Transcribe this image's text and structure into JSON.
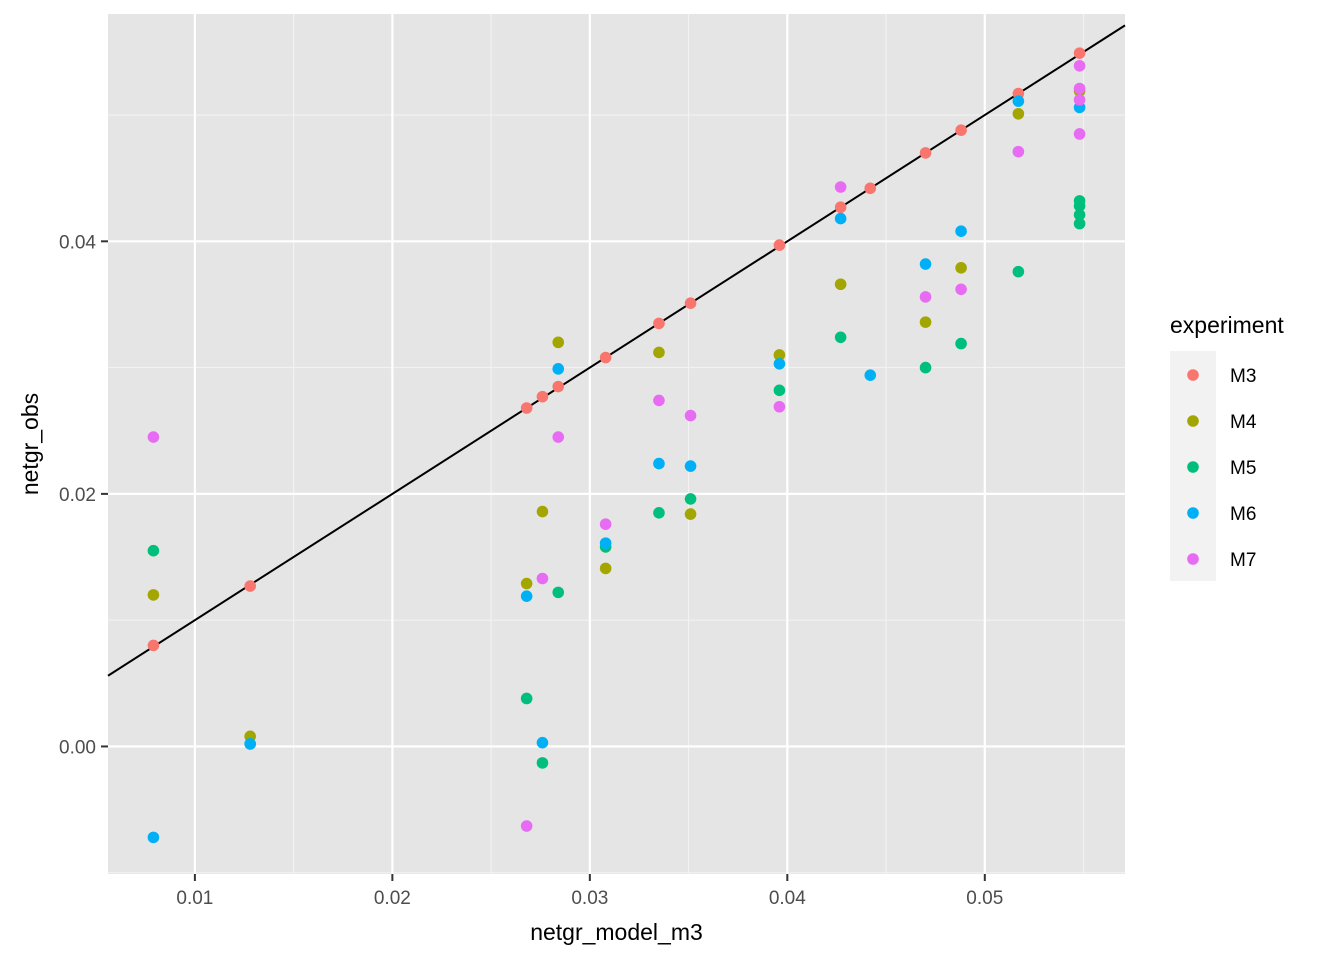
{
  "chart_data": {
    "type": "scatter",
    "xlabel": "netgr_model_m3",
    "ylabel": "netgr_obs",
    "xlim": [
      0.0056,
      0.0571
    ],
    "ylim": [
      -0.0101,
      0.058
    ],
    "x_ticks": [
      0.01,
      0.02,
      0.03,
      0.04,
      0.05
    ],
    "x_tick_labels": [
      "0.01",
      "0.02",
      "0.03",
      "0.04",
      "0.05"
    ],
    "y_ticks": [
      0.0,
      0.02,
      0.04
    ],
    "y_tick_labels": [
      "0.00",
      "0.02",
      "0.04"
    ],
    "grid": true,
    "panel_background": "#e5e5e5",
    "reference_line": {
      "slope": 1,
      "intercept": 0,
      "color": "#000000"
    },
    "legend": {
      "title": "experiment",
      "position": "right"
    },
    "series": [
      {
        "name": "M3",
        "color": "#F8766D",
        "points": [
          [
            0.0079,
            0.008
          ],
          [
            0.0128,
            0.0127
          ],
          [
            0.0268,
            0.0268
          ],
          [
            0.0276,
            0.0277
          ],
          [
            0.0284,
            0.0285
          ],
          [
            0.0308,
            0.0308
          ],
          [
            0.0335,
            0.0335
          ],
          [
            0.0351,
            0.0351
          ],
          [
            0.0396,
            0.0397
          ],
          [
            0.0427,
            0.0427
          ],
          [
            0.0442,
            0.0442
          ],
          [
            0.047,
            0.047
          ],
          [
            0.0488,
            0.0488
          ],
          [
            0.0517,
            0.0517
          ],
          [
            0.0548,
            0.0549
          ]
        ]
      },
      {
        "name": "M4",
        "color": "#A3A500",
        "points": [
          [
            0.0079,
            0.012
          ],
          [
            0.0128,
            0.0008
          ],
          [
            0.0268,
            0.0129
          ],
          [
            0.0276,
            0.0186
          ],
          [
            0.0284,
            0.032
          ],
          [
            0.0308,
            0.0141
          ],
          [
            0.0335,
            0.0312
          ],
          [
            0.0351,
            0.0184
          ],
          [
            0.0396,
            0.031
          ],
          [
            0.0427,
            0.0366
          ],
          [
            0.047,
            0.0336
          ],
          [
            0.0488,
            0.0379
          ],
          [
            0.0517,
            0.0501
          ],
          [
            0.0548,
            0.0519
          ]
        ]
      },
      {
        "name": "M5",
        "color": "#00BF7D",
        "points": [
          [
            0.0079,
            0.0155
          ],
          [
            0.0128,
            0.0002
          ],
          [
            0.0268,
            0.0038
          ],
          [
            0.0276,
            -0.0013
          ],
          [
            0.0284,
            0.0122
          ],
          [
            0.0308,
            0.0158
          ],
          [
            0.0335,
            0.0185
          ],
          [
            0.0351,
            0.0196
          ],
          [
            0.0396,
            0.0282
          ],
          [
            0.0427,
            0.0324
          ],
          [
            0.047,
            0.03
          ],
          [
            0.0488,
            0.0319
          ],
          [
            0.0517,
            0.0376
          ],
          [
            0.0548,
            0.0432
          ],
          [
            0.0548,
            0.0421
          ],
          [
            0.0548,
            0.0414
          ],
          [
            0.0548,
            0.0428
          ]
        ]
      },
      {
        "name": "M6",
        "color": "#00B0F6",
        "points": [
          [
            0.0079,
            -0.0072
          ],
          [
            0.0128,
            0.0002
          ],
          [
            0.0268,
            0.0119
          ],
          [
            0.0276,
            0.0003
          ],
          [
            0.0284,
            0.0299
          ],
          [
            0.0308,
            0.0161
          ],
          [
            0.0335,
            0.0224
          ],
          [
            0.0351,
            0.0222
          ],
          [
            0.0396,
            0.0303
          ],
          [
            0.0427,
            0.0418
          ],
          [
            0.0442,
            0.0294
          ],
          [
            0.047,
            0.0382
          ],
          [
            0.0488,
            0.0408
          ],
          [
            0.0517,
            0.0511
          ],
          [
            0.0548,
            0.0506
          ]
        ]
      },
      {
        "name": "M7",
        "color": "#E76BF3",
        "points": [
          [
            0.0079,
            0.0245
          ],
          [
            0.0268,
            -0.0063
          ],
          [
            0.0276,
            0.0133
          ],
          [
            0.0284,
            0.0245
          ],
          [
            0.0308,
            0.0176
          ],
          [
            0.0335,
            0.0274
          ],
          [
            0.0351,
            0.0262
          ],
          [
            0.0396,
            0.0269
          ],
          [
            0.0427,
            0.0443
          ],
          [
            0.047,
            0.0356
          ],
          [
            0.0488,
            0.0362
          ],
          [
            0.0517,
            0.0471
          ],
          [
            0.0548,
            0.0539
          ],
          [
            0.0548,
            0.0521
          ],
          [
            0.0548,
            0.0512
          ],
          [
            0.0548,
            0.0485
          ]
        ]
      }
    ]
  }
}
